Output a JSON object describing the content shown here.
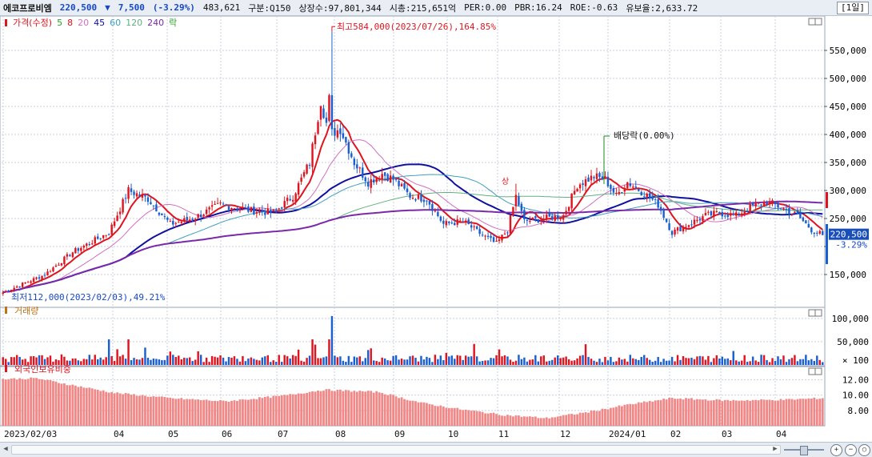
{
  "header": {
    "stock_name": "에코프로비엠",
    "price": "220,500",
    "change_arrow": "▼",
    "change": "7,500",
    "change_pct": "(-3.29%)",
    "volume": "483,621",
    "market_info": "구분:Q150",
    "shares": "상장수:97,801,344",
    "market_cap": "시총:215,651억",
    "per": "PER:0.00",
    "pbr": "PBR:16.24",
    "roe": "ROE:-0.63",
    "float_ratio": "유보율:2,633.72",
    "timeframe": "[1일]"
  },
  "colors": {
    "up": "#e0141e",
    "down": "#1a5fd0",
    "ma5": "#2aa02a",
    "ma8": "#e0141e",
    "ma20": "#d070c0",
    "ma45": "#1010a0",
    "ma60": "#40a0c0",
    "ma120": "#60b080",
    "ma240": "#7a2aa8",
    "foreign": "#f08888",
    "grid": "#c8d0dc"
  },
  "panels": {
    "price_title": "가격(수정)",
    "volume_title": "거래량",
    "foreign_title": "외국인보유비중"
  },
  "chart_data": [
    {
      "type": "candlestick",
      "title": "가격(수정)",
      "legend": [
        {
          "name": "5",
          "color": "#2aa02a"
        },
        {
          "name": "8",
          "color": "#e0141e"
        },
        {
          "name": "20",
          "color": "#d070c0"
        },
        {
          "name": "45",
          "color": "#1010a0"
        },
        {
          "name": "60",
          "color": "#40a0c0"
        },
        {
          "name": "120",
          "color": "#60b080"
        },
        {
          "name": "240",
          "color": "#7a2aa8"
        },
        {
          "name": "락",
          "color": "#2aa02a"
        }
      ],
      "y_ticks": [
        150000,
        200000,
        250000,
        300000,
        350000,
        400000,
        450000,
        500000,
        550000
      ],
      "y_tick_labels": [
        "150,000",
        "",
        "250,000",
        "300,000",
        "350,000",
        "400,000",
        "450,000",
        "500,000",
        "550,000"
      ],
      "ylim": [
        100000,
        600000
      ],
      "x_labels": [
        "2023/02/03",
        "04",
        "05",
        "06",
        "07",
        "08",
        "09",
        "10",
        "11",
        "12",
        "2024/01",
        "02",
        "03",
        "04"
      ],
      "x_label_positions": [
        0,
        38,
        58,
        78,
        98,
        118,
        140,
        160,
        179,
        198,
        221,
        240,
        259,
        278
      ],
      "n_bars": 295,
      "close_anchors": [
        [
          0,
          118000
        ],
        [
          15,
          150000
        ],
        [
          25,
          190000
        ],
        [
          38,
          225000
        ],
        [
          45,
          300000
        ],
        [
          52,
          285000
        ],
        [
          60,
          240000
        ],
        [
          68,
          250000
        ],
        [
          78,
          275000
        ],
        [
          88,
          265000
        ],
        [
          97,
          260000
        ],
        [
          104,
          290000
        ],
        [
          110,
          350000
        ],
        [
          114,
          460000
        ],
        [
          117,
          400000
        ],
        [
          121,
          410000
        ],
        [
          126,
          350000
        ],
        [
          131,
          315000
        ],
        [
          136,
          330000
        ],
        [
          140,
          320000
        ],
        [
          146,
          290000
        ],
        [
          152,
          285000
        ],
        [
          158,
          240000
        ],
        [
          165,
          245000
        ],
        [
          172,
          220000
        ],
        [
          177,
          205000
        ],
        [
          181,
          230000
        ],
        [
          184,
          290000
        ],
        [
          187,
          245000
        ],
        [
          194,
          250000
        ],
        [
          201,
          255000
        ],
        [
          206,
          310000
        ],
        [
          212,
          325000
        ],
        [
          216,
          320000
        ],
        [
          220,
          290000
        ],
        [
          224,
          315000
        ],
        [
          230,
          295000
        ],
        [
          235,
          275000
        ],
        [
          240,
          225000
        ],
        [
          246,
          240000
        ],
        [
          252,
          255000
        ],
        [
          257,
          260000
        ],
        [
          263,
          255000
        ],
        [
          268,
          270000
        ],
        [
          274,
          280000
        ],
        [
          279,
          270000
        ],
        [
          285,
          255000
        ],
        [
          290,
          230000
        ],
        [
          294,
          220500
        ]
      ],
      "moving_averages": [
        {
          "name": "8",
          "color": "#e0141e",
          "width": 2,
          "period": 8
        },
        {
          "name": "45",
          "color": "#1010a0",
          "width": 2,
          "period": 45
        },
        {
          "name": "20",
          "color": "#d070c0",
          "width": 1,
          "period": 20
        },
        {
          "name": "60",
          "color": "#40a0c0",
          "width": 1,
          "period": 60
        },
        {
          "name": "120",
          "color": "#60b080",
          "width": 1,
          "period": 120
        },
        {
          "name": "240",
          "color": "#7a2aa8",
          "width": 2,
          "period": 240
        }
      ],
      "annotations": [
        {
          "text": "최고584,000(2023/07/26),164.85%",
          "bar": 118,
          "value": 584000
        },
        {
          "text": "최저112,000(2023/02/03),49.21%",
          "bar": 0,
          "value": 112000
        },
        {
          "text": "배당락(0.00%)",
          "bar": 220,
          "value": 430000
        },
        {
          "text": "상",
          "bar": 184,
          "value": 312000
        }
      ],
      "last_price_label": "220,500",
      "last_change_label": "-3.29%"
    },
    {
      "type": "bar",
      "title": "거래량",
      "y_tick_labels": [
        "100,000",
        "50,000",
        "× 100"
      ],
      "ylim": [
        0,
        110000
      ]
    },
    {
      "type": "bar",
      "title": "외국인보유비중",
      "y_tick_labels": [
        "12.00",
        "10.00",
        "8.00"
      ],
      "ylim": [
        6.0,
        13.0
      ]
    }
  ]
}
